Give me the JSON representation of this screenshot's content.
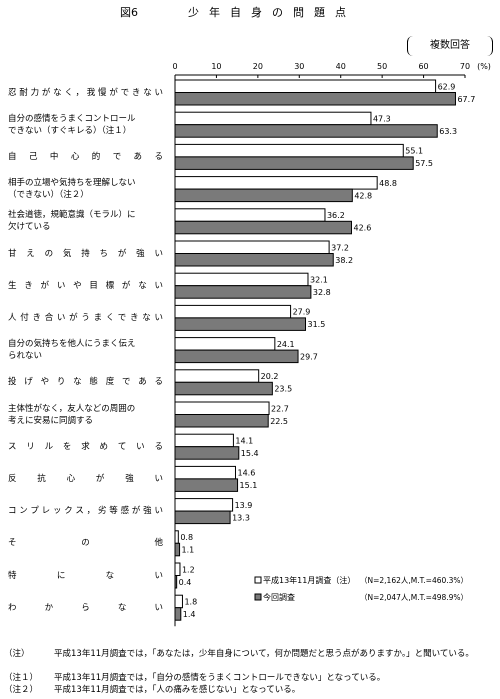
{
  "figure": {
    "label": "図6",
    "title": "少年自身の問題点",
    "multi_answer": "複数回答"
  },
  "chart_data": {
    "type": "bar",
    "orientation": "horizontal",
    "xlim": [
      0,
      70
    ],
    "ticks": [
      0,
      10,
      20,
      30,
      40,
      50,
      60,
      70
    ],
    "unit": "(%)",
    "grid": false,
    "legend_position": "bottom-right",
    "categories": [
      "忍耐力がなく，我慢ができない",
      "自分の感情をうまくコントロールできない（すぐキレる）（注１）",
      "自己中心的である",
      "相手の立場や気持ちを理解しない（できない）（注２）",
      "社会道徳，規範意識（モラル）に欠けている",
      "甘えの気持ちが強い",
      "生きがいや目標がない",
      "人付き合いがうまくできない",
      "自分の気持ちを他人にうまく伝えられない",
      "投げやりな態度である",
      "主体性がなく，友人などの周囲の考えに安易に同調する",
      "スリルを求めている",
      "反抗心が強い",
      "コンプレックス，劣等感が強い",
      "その他",
      "特にない",
      "わからない"
    ],
    "series": [
      {
        "name": "平成13年11月調査（注）",
        "note": "（N=2,162人,M.T.=460.3%）",
        "color": "#ffffff",
        "values": [
          62.9,
          47.3,
          55.1,
          48.8,
          36.2,
          37.2,
          32.1,
          27.9,
          24.1,
          20.2,
          22.7,
          14.1,
          14.6,
          13.9,
          0.8,
          1.2,
          1.8
        ]
      },
      {
        "name": "今回調査",
        "note": "（N=2,047人,M.T.=498.9%）",
        "color": "#7a7a7a",
        "values": [
          67.7,
          63.3,
          57.5,
          42.8,
          42.6,
          38.2,
          32.8,
          31.5,
          29.7,
          23.5,
          22.5,
          15.4,
          15.1,
          13.3,
          1.1,
          0.4,
          1.4
        ]
      }
    ]
  },
  "category_lines": [
    [
      "忍耐力がなく，我慢ができない"
    ],
    [
      "自分の感情をうまくコントロール",
      "できない（すぐキレる）（注１）"
    ],
    [
      "自己中心的である"
    ],
    [
      "相手の立場や気持ちを理解しない",
      "（できない）（注２）"
    ],
    [
      "社会道徳，規範意識（モラル）に",
      "欠けている"
    ],
    [
      "甘えの気持ちが強い"
    ],
    [
      "生きがいや目標がない"
    ],
    [
      "人付き合いがうまくできない"
    ],
    [
      "自分の気持ちを他人にうまく伝え",
      "られない"
    ],
    [
      "投げやりな態度である"
    ],
    [
      "主体性がなく，友人などの周囲の",
      "考えに安易に同調する"
    ],
    [
      "スリルを求めている"
    ],
    [
      "反抗心が強い"
    ],
    [
      "コンプレックス，劣等感が強い"
    ],
    [
      "その他"
    ],
    [
      "特にない"
    ],
    [
      "わからない"
    ]
  ],
  "notes": [
    {
      "mark": "（注）",
      "text": "平成13年11月調査では，「あなたは，少年自身について，何か問題だと思う点がありますか。」と聞いている。"
    },
    {
      "mark": "（注１）",
      "text": "平成13年11月調査では，「自分の感情をうまくコントロールできない」となっている。"
    },
    {
      "mark": "（注２）",
      "text": "平成13年11月調査では，「人の痛みを感じない」となっている。"
    }
  ]
}
